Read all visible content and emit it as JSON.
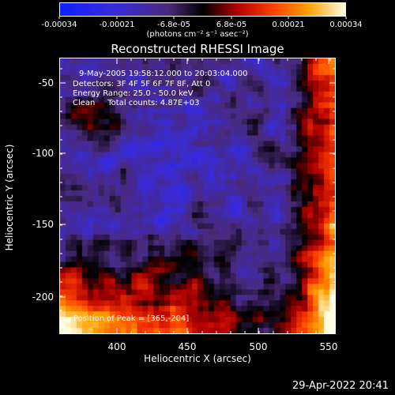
{
  "colorbar": {
    "tick_labels": [
      "-0.00034",
      "-0.00021",
      "-6.8e-05",
      "6.8e-05",
      "0.00021",
      "0.00034"
    ],
    "units": "(photons cm⁻² s⁻¹ asec⁻²)"
  },
  "title": "Reconstructed RHESSI Image",
  "info": {
    "time_range": "9-May-2005 19:58:12.000 to 20:03:04.000",
    "detectors": "Detectors: 3F 4F 5F 6F 7F 8F, Att 0",
    "energy": "Energy Range: 25.0 - 50.0 keV",
    "method": "Clean     Total counts: 4.87E+03"
  },
  "peak": "Position of Peak = [365,-204]",
  "axes": {
    "xlabel": "Heliocentric X (arcsec)",
    "ylabel": "Heliocentric Y (arcsec)",
    "x_ticks": [
      "400",
      "450",
      "500",
      "550"
    ],
    "y_ticks": [
      "-50",
      "-100",
      "-150",
      "-200"
    ]
  },
  "timestamp": "29-Apr-2022 20:41"
}
